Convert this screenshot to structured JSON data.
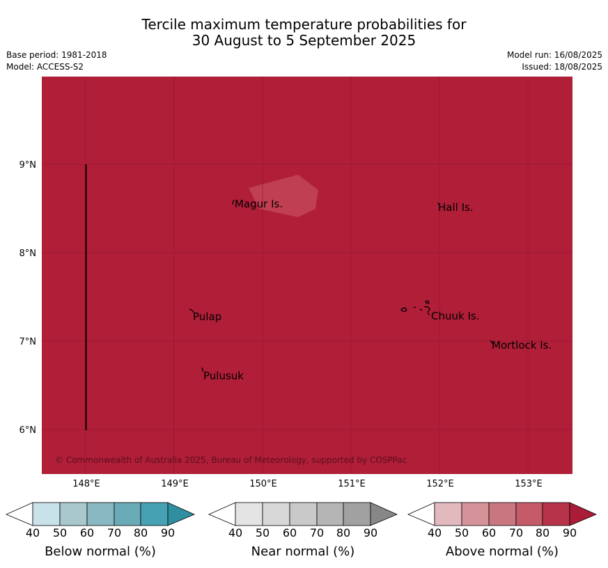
{
  "title": {
    "line1": "Tercile maximum temperature probabilities for",
    "line2": "30 August to 5 September 2025"
  },
  "meta": {
    "base_period": "Base period: 1981-2018",
    "model": "Model: ACCESS-S2",
    "model_run": "Model run: 16/08/2025",
    "issued": "Issued: 18/08/2025"
  },
  "map": {
    "fill_color": "#b01e38",
    "lighter_patch_color": "#c04052",
    "longitude_ticks": [
      "148°E",
      "149°E",
      "150°E",
      "151°E",
      "152°E",
      "153°E"
    ],
    "latitude_ticks": [
      "9°N",
      "8°N",
      "7°N",
      "6°N"
    ],
    "places": [
      "Magur Is.",
      "Hall Is.",
      "Pulap",
      "Chuuk Is.",
      "Mortlock Is.",
      "Pulusuk"
    ],
    "copyright": "© Commonwealth of Australia 2025, Bureau of Meteorology, supported by COSPPac"
  },
  "legends": [
    {
      "label": "Below normal (%)",
      "ticks": [
        "40",
        "50",
        "60",
        "70",
        "80",
        "90"
      ],
      "colors": [
        "#ffffff",
        "#c9e1e8",
        "#a8c8ce",
        "#8ab8c2",
        "#6babb8",
        "#46a2b3",
        "#2f8ea0"
      ]
    },
    {
      "label": "Near normal (%)",
      "ticks": [
        "40",
        "50",
        "60",
        "70",
        "80",
        "90"
      ],
      "colors": [
        "#ffffff",
        "#e4e4e4",
        "#d7d7d7",
        "#c9c9c9",
        "#b5b5b5",
        "#a1a1a1",
        "#878787"
      ]
    },
    {
      "label": "Above normal (%)",
      "ticks": [
        "40",
        "50",
        "60",
        "70",
        "80",
        "90"
      ],
      "colors": [
        "#ffffff",
        "#e1b9bf",
        "#d59299",
        "#c97680",
        "#c55b69",
        "#b7334a",
        "#ab1c38"
      ]
    }
  ]
}
